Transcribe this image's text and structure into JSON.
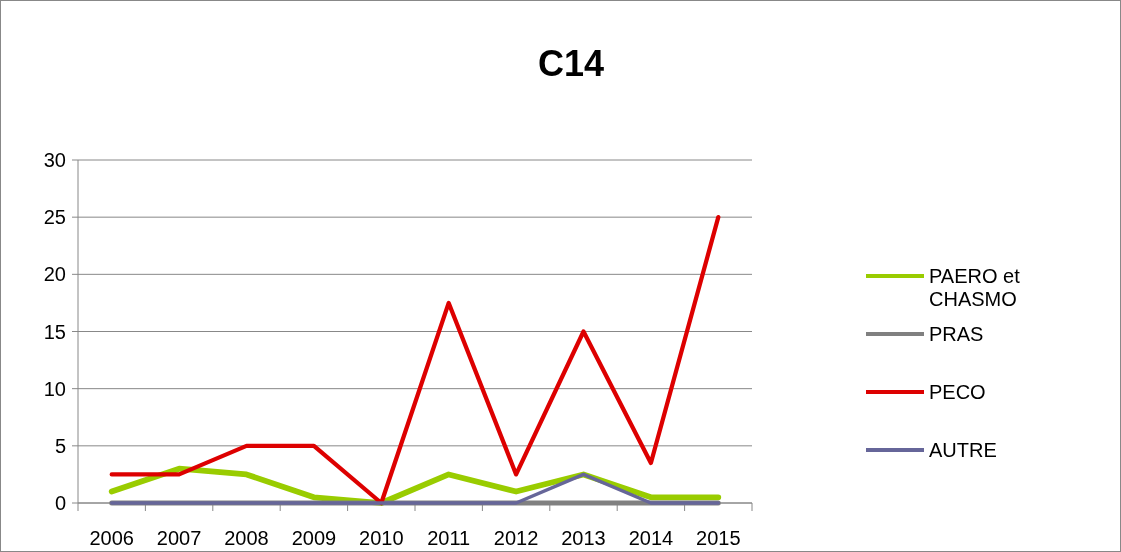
{
  "chart_data": {
    "type": "line",
    "title": "C14",
    "categories": [
      "2006",
      "2007",
      "2008",
      "2009",
      "2010",
      "2011",
      "2012",
      "2013",
      "2014",
      "2015"
    ],
    "series": [
      {
        "name": "PAERO et CHASMO",
        "color": "#99cc00",
        "values": [
          1,
          3,
          2.5,
          0.5,
          0,
          2.5,
          1,
          2.5,
          0.5,
          0.5
        ]
      },
      {
        "name": "PRAS",
        "color": "#808080",
        "values": [
          0,
          0,
          0,
          0,
          0,
          0,
          0,
          0,
          0,
          0
        ]
      },
      {
        "name": "PECO",
        "color": "#dd0000",
        "values": [
          2.5,
          2.5,
          5,
          5,
          0,
          17.5,
          2.5,
          15,
          3.5,
          25
        ]
      },
      {
        "name": "AUTRE",
        "color": "#666699",
        "values": [
          0,
          0,
          0,
          0,
          0,
          0,
          0,
          2.5,
          0,
          0
        ]
      }
    ],
    "ylim": [
      0,
      30
    ],
    "yticks": [
      0,
      5,
      10,
      15,
      20,
      25,
      30
    ],
    "grid": "y",
    "legend": "right",
    "marker": "none",
    "line_style": "solid"
  }
}
